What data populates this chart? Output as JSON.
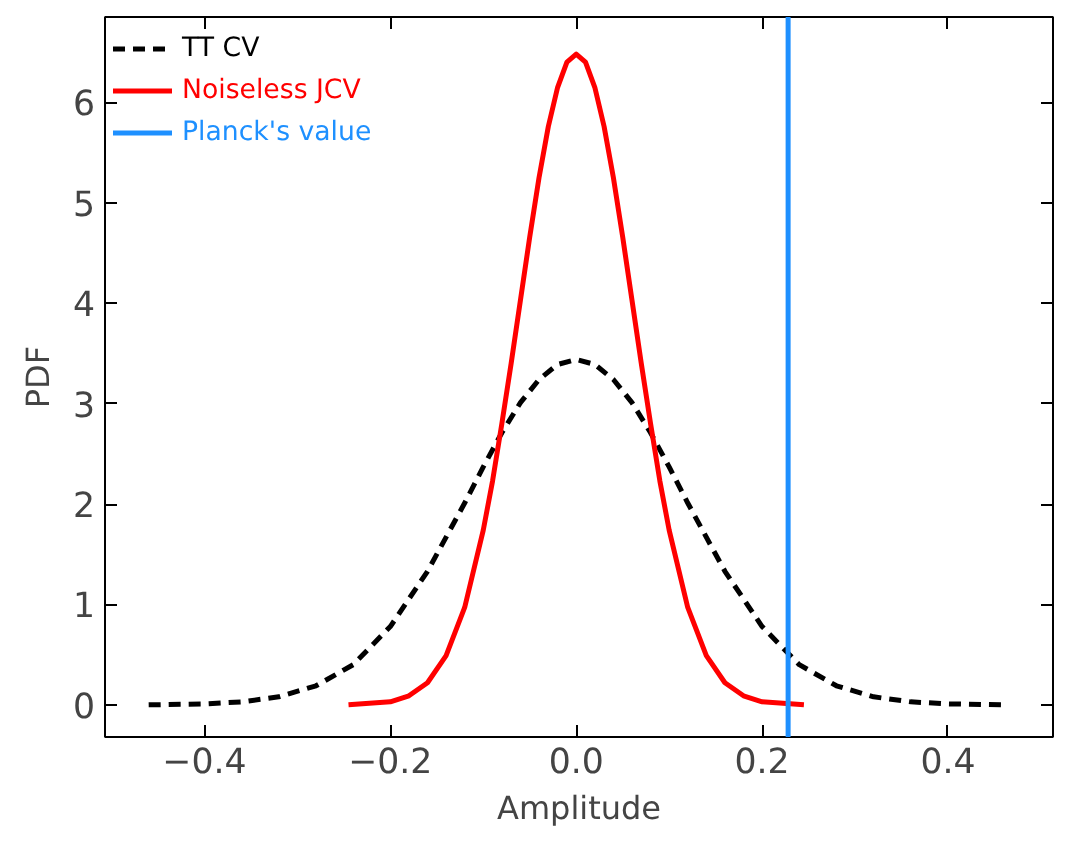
{
  "chart_data": {
    "type": "line",
    "xlabel": "Amplitude",
    "ylabel": "PDF",
    "xlim": [
      -0.507,
      0.513
    ],
    "ylim": [
      -0.32,
      6.85
    ],
    "xticks": [
      {
        "value": -0.4,
        "label": "−0.4"
      },
      {
        "value": -0.2,
        "label": "−0.2"
      },
      {
        "value": 0,
        "label": "0.0"
      },
      {
        "value": 0.2,
        "label": "0.2"
      },
      {
        "value": 0.4,
        "label": "0.4"
      }
    ],
    "yticks": [
      0,
      1,
      2,
      3,
      4,
      5,
      6
    ],
    "grid": false,
    "legend": "top left",
    "series": [
      {
        "name": "TT CV",
        "color": "#000000",
        "line_style": "dashed",
        "x": [
          -0.46,
          -0.4,
          -0.36,
          -0.32,
          -0.28,
          -0.24,
          -0.2,
          -0.16,
          -0.12,
          -0.1,
          -0.08,
          -0.06,
          -0.04,
          -0.02,
          0,
          0.02,
          0.04,
          0.06,
          0.08,
          0.1,
          0.12,
          0.16,
          0.2,
          0.24,
          0.28,
          0.32,
          0.36,
          0.4,
          0.46
        ],
        "values": [
          0,
          0.01,
          0.03,
          0.08,
          0.19,
          0.4,
          0.78,
          1.33,
          2.01,
          2.37,
          2.71,
          3.01,
          3.24,
          3.39,
          3.44,
          3.39,
          3.24,
          3.01,
          2.71,
          2.37,
          2.01,
          1.33,
          0.78,
          0.4,
          0.19,
          0.08,
          0.03,
          0.01,
          0
        ]
      },
      {
        "name": "Noiseless JCV",
        "color": "#ff0000",
        "line_style": "solid",
        "x": [
          -0.245,
          -0.2,
          -0.18,
          -0.16,
          -0.14,
          -0.12,
          -0.1,
          -0.09,
          -0.08,
          -0.07,
          -0.06,
          -0.05,
          -0.04,
          -0.03,
          -0.02,
          -0.01,
          0,
          0.01,
          0.02,
          0.03,
          0.04,
          0.05,
          0.06,
          0.07,
          0.08,
          0.09,
          0.1,
          0.12,
          0.14,
          0.16,
          0.18,
          0.2,
          0.245
        ],
        "values": [
          0,
          0.03,
          0.09,
          0.22,
          0.49,
          0.97,
          1.74,
          2.23,
          2.8,
          3.4,
          4.03,
          4.66,
          5.25,
          5.76,
          6.15,
          6.4,
          6.48,
          6.4,
          6.15,
          5.76,
          5.25,
          4.66,
          4.03,
          3.4,
          2.8,
          2.23,
          1.74,
          0.97,
          0.49,
          0.22,
          0.09,
          0.03,
          0
        ]
      }
    ],
    "ref_lines": [
      {
        "axis": "x",
        "value": 0.228,
        "label": "Planck's value",
        "color": "#1e90ff",
        "line_style": "solid"
      }
    ]
  }
}
